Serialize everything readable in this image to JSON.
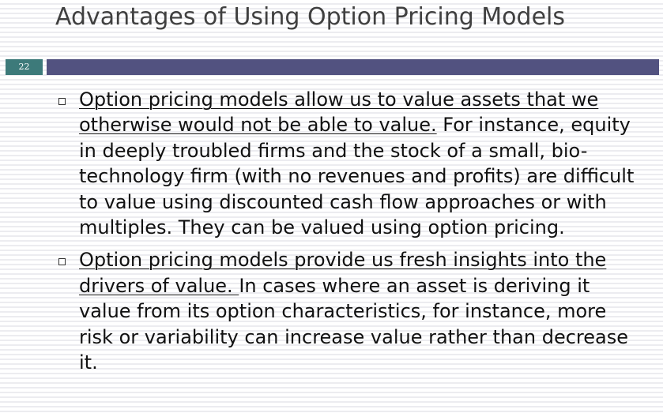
{
  "slide": {
    "title": "Advantages of Using Option Pricing Models",
    "number": "22"
  },
  "bullets": [
    {
      "lead": "Option pricing models allow us to value assets that we otherwise would not be able to value.",
      "rest": " For instance, equity in deeply troubled firms and the stock of a small, bio-technology firm (with no revenues and profits) are difficult to value using discounted cash flow approaches or with multiples. They can be valued using option pricing."
    },
    {
      "lead": "Option pricing models provide us fresh insights into the drivers of value. ",
      "rest": "In cases where an asset is deriving it value from its option characteristics, for instance, more risk or variability can increase value rather than decrease it."
    }
  ],
  "colors": {
    "title_bar": "#525280",
    "number_box": "#3d7a7a",
    "title_text": "#404040"
  }
}
